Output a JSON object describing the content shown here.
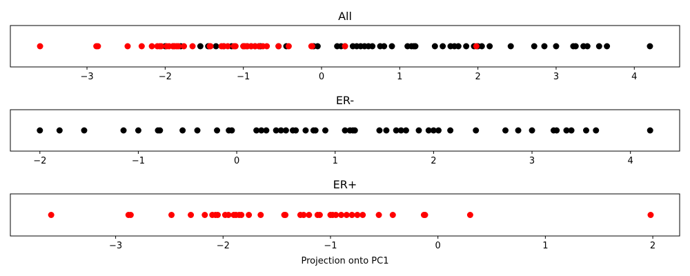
{
  "chart_data": [
    {
      "type": "scatter",
      "title": "All",
      "xlabel": "",
      "ylabel": "",
      "xlim": [
        -3.98,
        4.58
      ],
      "xticks": [
        "−3",
        "−2",
        "−1",
        "0",
        "1",
        "2",
        "3",
        "4"
      ],
      "grid": false,
      "series": [
        {
          "color": "#000000",
          "x": [
            -2.0,
            -1.9,
            -1.8,
            -1.55,
            -1.45,
            -1.35,
            -1.25,
            -1.15,
            -1.0,
            -0.95,
            -0.9,
            -0.85,
            -0.8,
            -0.78,
            -0.55,
            -0.45,
            -0.1,
            -0.05,
            0.2,
            0.25,
            0.3,
            0.4,
            0.45,
            0.5,
            0.55,
            0.6,
            0.65,
            0.75,
            0.8,
            0.9,
            1.1,
            1.15,
            1.18,
            1.2,
            1.45,
            1.55,
            1.65,
            1.7,
            1.75,
            1.85,
            1.95,
            2.0,
            2.05,
            2.15,
            2.42,
            2.72,
            2.85,
            3.0,
            3.22,
            3.25,
            3.35,
            3.4,
            3.55,
            3.65,
            4.2
          ]
        },
        {
          "color": "#ff0000",
          "x": [
            -3.6,
            -2.88,
            -2.86,
            -2.48,
            -2.3,
            -2.17,
            -2.1,
            -2.07,
            -2.05,
            -1.98,
            -1.95,
            -1.9,
            -1.88,
            -1.85,
            -1.83,
            -1.76,
            -1.65,
            -1.43,
            -1.42,
            -1.28,
            -1.25,
            -1.2,
            -1.12,
            -1.1,
            -1.0,
            -0.98,
            -0.95,
            -0.9,
            -0.85,
            -0.8,
            -0.75,
            -0.7,
            -0.55,
            -0.42,
            -0.13,
            -0.12,
            0.3,
            1.98
          ]
        }
      ]
    },
    {
      "type": "scatter",
      "title": "ER-",
      "xlabel": "",
      "ylabel": "",
      "xlim": [
        -2.3,
        4.5
      ],
      "xticks": [
        "−2",
        "−1",
        "0",
        "1",
        "2",
        "3",
        "4"
      ],
      "grid": false,
      "series": [
        {
          "color": "#000000",
          "x": [
            -2.0,
            -1.8,
            -1.55,
            -1.15,
            -1.0,
            -0.8,
            -0.78,
            -0.55,
            -0.4,
            -0.2,
            -0.08,
            -0.05,
            0.2,
            0.25,
            0.3,
            0.4,
            0.45,
            0.5,
            0.57,
            0.6,
            0.7,
            0.78,
            0.8,
            0.9,
            1.1,
            1.15,
            1.18,
            1.2,
            1.45,
            1.52,
            1.62,
            1.67,
            1.72,
            1.85,
            1.95,
            2.0,
            2.05,
            2.17,
            2.43,
            2.73,
            2.86,
            3.0,
            3.22,
            3.25,
            3.35,
            3.4,
            3.55,
            3.65,
            4.2
          ]
        }
      ]
    },
    {
      "type": "scatter",
      "title": "ER+",
      "xlabel": "Projection onto PC1",
      "ylabel": "",
      "xlim": [
        -3.98,
        2.25
      ],
      "xticks": [
        "−3",
        "−2",
        "−1",
        "0",
        "1",
        "2"
      ],
      "grid": false,
      "series": [
        {
          "color": "#ff0000",
          "x": [
            -3.6,
            -2.88,
            -2.86,
            -2.48,
            -2.3,
            -2.17,
            -2.1,
            -2.07,
            -2.05,
            -1.98,
            -1.95,
            -1.9,
            -1.88,
            -1.85,
            -1.83,
            -1.76,
            -1.65,
            -1.43,
            -1.42,
            -1.28,
            -1.25,
            -1.2,
            -1.12,
            -1.1,
            -1.0,
            -0.98,
            -0.95,
            -0.9,
            -0.85,
            -0.8,
            -0.75,
            -0.7,
            -0.55,
            -0.42,
            -0.13,
            -0.12,
            0.3,
            1.98
          ]
        }
      ]
    }
  ]
}
